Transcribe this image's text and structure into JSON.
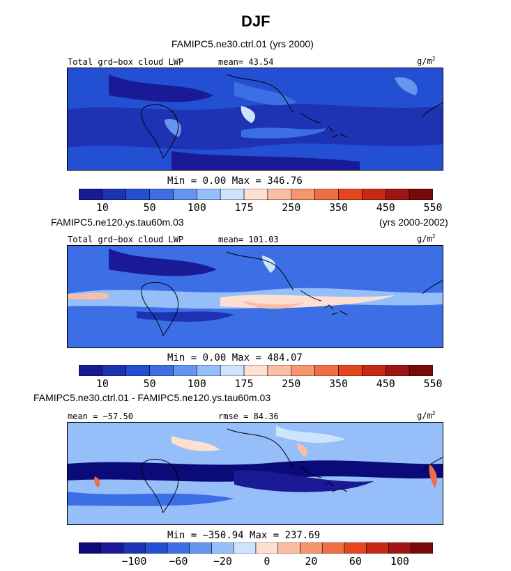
{
  "figure": {
    "title": "DJF",
    "unit": "g/m",
    "unit_sup": "2",
    "panels": [
      {
        "case_left": "",
        "case_top": "FAMIPC5.ne30.ctrl.01 (yrs 2000)",
        "case_right": "",
        "field": "Total grd−box cloud LWP",
        "stat_left": "",
        "stat_mid": "mean=  43.54",
        "minmax": "Min =     0.00  Max = 346.76",
        "ticks": [
          "10",
          "50",
          "100",
          "175",
          "250",
          "350",
          "450",
          "550"
        ],
        "palette": [
          "#1a1a96",
          "#1e32b4",
          "#2350d2",
          "#3c6ee6",
          "#6496f0",
          "#96bef8",
          "#cde4fc",
          "#fde0d2",
          "#fabea5",
          "#f5966e",
          "#f06e46",
          "#e6461e",
          "#c82814",
          "#a01414",
          "#780a0a"
        ]
      },
      {
        "case_left": "FAMIPC5.ne120.ys.tau60m.03",
        "case_top": "",
        "case_right": "(yrs 2000-2002)",
        "field": "Total grd−box cloud LWP",
        "stat_left": "",
        "stat_mid": "mean= 101.03",
        "minmax": "Min =     0.00  Max = 484.07",
        "ticks": [
          "10",
          "50",
          "100",
          "175",
          "250",
          "350",
          "450",
          "550"
        ],
        "palette": [
          "#1a1a96",
          "#1e32b4",
          "#2350d2",
          "#3c6ee6",
          "#6496f0",
          "#96bef8",
          "#cde4fc",
          "#fde0d2",
          "#fabea5",
          "#f5966e",
          "#f06e46",
          "#e6461e",
          "#c82814",
          "#a01414",
          "#780a0a"
        ]
      },
      {
        "case_left": "FAMIPC5.ne30.ctrl.01 - FAMIPC5.ne120.ys.tau60m.03",
        "case_top": "",
        "case_right": "",
        "field": "",
        "stat_left": "mean = −57.50",
        "stat_mid": "rmse =  84.36",
        "minmax": "Min = −350.94  Max = 237.69",
        "ticks": [
          "−100",
          "−60",
          "−20",
          "0",
          "20",
          "60",
          "100"
        ],
        "palette": [
          "#0a0a78",
          "#1a1a96",
          "#1e32b4",
          "#2350d2",
          "#3c6ee6",
          "#6496f0",
          "#96bef8",
          "#cde4fc",
          "#fde0d2",
          "#fabea5",
          "#f5966e",
          "#f06e46",
          "#e6461e",
          "#c82814",
          "#a01414",
          "#780a0a"
        ]
      }
    ]
  }
}
